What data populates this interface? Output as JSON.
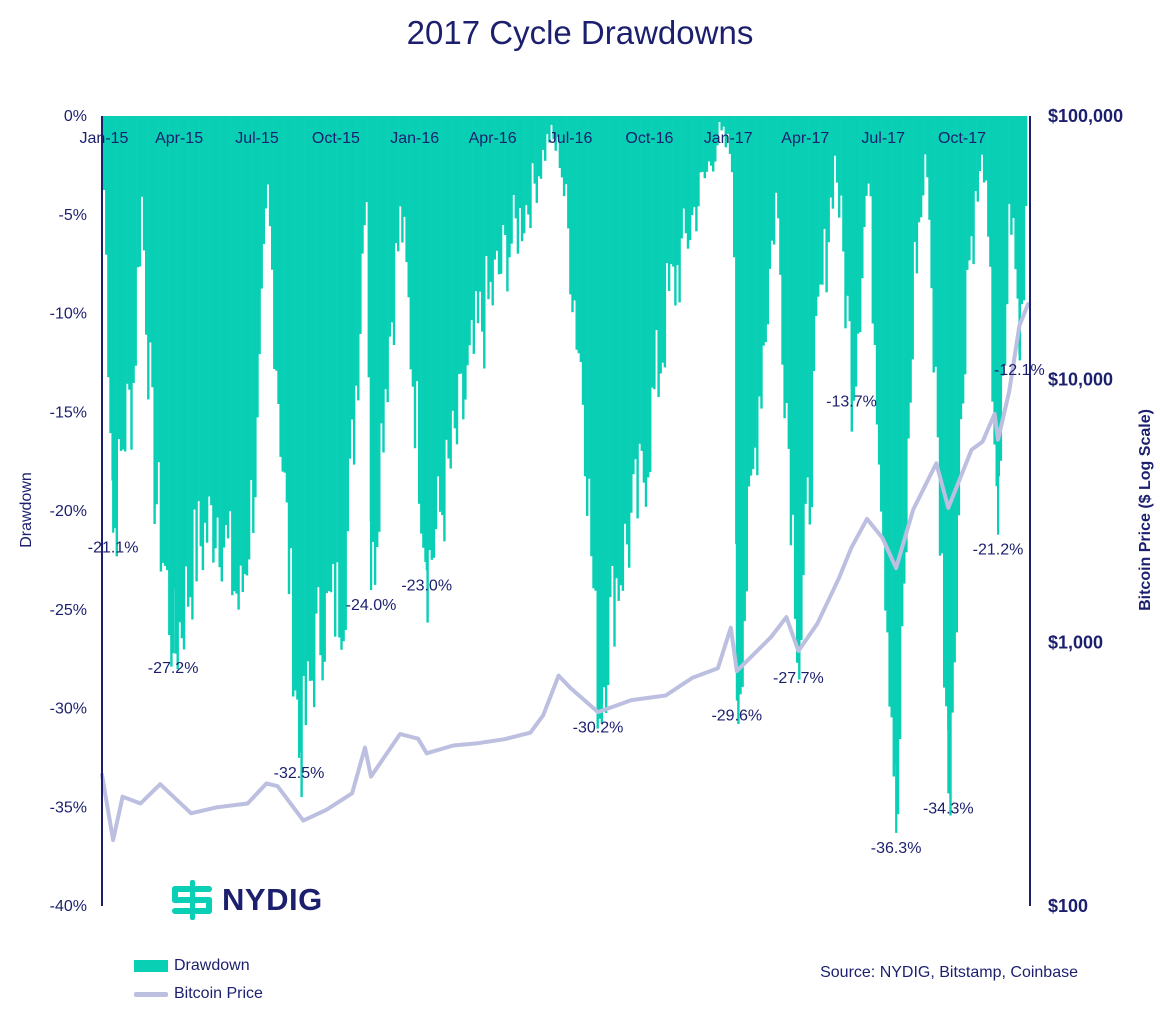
{
  "chart_data": {
    "type": "bar",
    "title": "2017 Cycle Drawdowns",
    "ylabel": "Drawdown",
    "y2label": "Bitcoin Price ($ Log Scale)",
    "ylim": [
      -40,
      0
    ],
    "y2lim": [
      100,
      100000
    ],
    "y2scale": "log",
    "ytick_labels": [
      "0%",
      "-5%",
      "-10%",
      "-15%",
      "-20%",
      "-25%",
      "-30%",
      "-35%",
      "-40%"
    ],
    "y2tick_labels": [
      "$100,000",
      "$10,000",
      "$1,000",
      "$100"
    ],
    "xtick_labels": [
      "Jan-15",
      "Apr-15",
      "Jul-15",
      "Oct-15",
      "Jan-16",
      "Apr-16",
      "Jul-16",
      "Oct-16",
      "Jan-17",
      "Apr-17",
      "Jul-17",
      "Oct-17"
    ],
    "legend": [
      "Drawdown",
      "Bitcoin Price"
    ],
    "legend_position": "bottom-left",
    "grid": false,
    "colors": {
      "drawdown": "#09cfb5",
      "price": "#bcbfe0",
      "text": "#1b1f6e"
    },
    "drawdown_troughs": [
      {
        "date": "2015-01-14",
        "value": -21.1,
        "label": "-21.1%"
      },
      {
        "date": "2015-03-25",
        "value": -27.2,
        "label": "-27.2%"
      },
      {
        "date": "2015-08-19",
        "value": -32.5,
        "label": "-32.5%"
      },
      {
        "date": "2015-11-11",
        "value": -24.0,
        "label": "-24.0%"
      },
      {
        "date": "2016-01-15",
        "value": -23.0,
        "label": "-23.0%"
      },
      {
        "date": "2016-08-02",
        "value": -30.2,
        "label": "-30.2%"
      },
      {
        "date": "2017-01-11",
        "value": -29.6,
        "label": "-29.6%"
      },
      {
        "date": "2017-03-24",
        "value": -27.7,
        "label": "-27.7%"
      },
      {
        "date": "2017-05-25",
        "value": -13.7,
        "label": "-13.7%"
      },
      {
        "date": "2017-07-16",
        "value": -36.3,
        "label": "-36.3%"
      },
      {
        "date": "2017-09-15",
        "value": -34.3,
        "label": "-34.3%"
      },
      {
        "date": "2017-11-12",
        "value": -21.2,
        "label": "-21.2%"
      },
      {
        "date": "2017-12-07",
        "value": -12.1,
        "label": "-12.1%"
      }
    ],
    "drawdown_series": {
      "name": "Drawdown",
      "points": [
        {
          "date": "2015-01-01",
          "value": -2
        },
        {
          "date": "2015-01-14",
          "value": -21.1
        },
        {
          "date": "2015-01-25",
          "value": -16
        },
        {
          "date": "2015-02-05",
          "value": -14
        },
        {
          "date": "2015-02-15",
          "value": -4
        },
        {
          "date": "2015-03-01",
          "value": -18
        },
        {
          "date": "2015-03-25",
          "value": -27.2
        },
        {
          "date": "2015-04-20",
          "value": -22
        },
        {
          "date": "2015-05-15",
          "value": -20
        },
        {
          "date": "2015-06-10",
          "value": -25
        },
        {
          "date": "2015-06-30",
          "value": -17
        },
        {
          "date": "2015-07-12",
          "value": -4
        },
        {
          "date": "2015-07-25",
          "value": -14
        },
        {
          "date": "2015-08-19",
          "value": -32.5
        },
        {
          "date": "2015-09-10",
          "value": -26
        },
        {
          "date": "2015-10-10",
          "value": -24
        },
        {
          "date": "2015-10-28",
          "value": -10
        },
        {
          "date": "2015-11-04",
          "value": -2
        },
        {
          "date": "2015-11-11",
          "value": -24.0
        },
        {
          "date": "2015-11-25",
          "value": -14
        },
        {
          "date": "2015-12-15",
          "value": -5
        },
        {
          "date": "2016-01-15",
          "value": -23.0
        },
        {
          "date": "2016-02-15",
          "value": -17
        },
        {
          "date": "2016-03-15",
          "value": -11
        },
        {
          "date": "2016-04-15",
          "value": -7
        },
        {
          "date": "2016-05-15",
          "value": -4
        },
        {
          "date": "2016-06-05",
          "value": -1
        },
        {
          "date": "2016-06-18",
          "value": -2
        },
        {
          "date": "2016-07-15",
          "value": -14
        },
        {
          "date": "2016-08-02",
          "value": -30.2
        },
        {
          "date": "2016-08-20",
          "value": -24
        },
        {
          "date": "2016-09-20",
          "value": -19
        },
        {
          "date": "2016-10-20",
          "value": -10
        },
        {
          "date": "2016-11-20",
          "value": -5
        },
        {
          "date": "2016-12-20",
          "value": -1
        },
        {
          "date": "2017-01-05",
          "value": -2
        },
        {
          "date": "2017-01-11",
          "value": -29.6
        },
        {
          "date": "2017-02-05",
          "value": -14
        },
        {
          "date": "2017-02-25",
          "value": -4
        },
        {
          "date": "2017-03-24",
          "value": -27.7
        },
        {
          "date": "2017-04-15",
          "value": -11
        },
        {
          "date": "2017-05-05",
          "value": -2
        },
        {
          "date": "2017-05-25",
          "value": -13.7
        },
        {
          "date": "2017-06-12",
          "value": -3
        },
        {
          "date": "2017-07-16",
          "value": -36.3
        },
        {
          "date": "2017-08-05",
          "value": -8
        },
        {
          "date": "2017-08-20",
          "value": -2
        },
        {
          "date": "2017-09-15",
          "value": -34.3
        },
        {
          "date": "2017-10-05",
          "value": -8
        },
        {
          "date": "2017-10-25",
          "value": -2
        },
        {
          "date": "2017-11-12",
          "value": -21.2
        },
        {
          "date": "2017-11-25",
          "value": -4
        },
        {
          "date": "2017-12-07",
          "value": -12.1
        },
        {
          "date": "2017-12-17",
          "value": 0
        }
      ]
    },
    "price_series": {
      "name": "Bitcoin Price",
      "points": [
        {
          "date": "2015-01-01",
          "value": 315
        },
        {
          "date": "2015-01-14",
          "value": 178
        },
        {
          "date": "2015-01-25",
          "value": 260
        },
        {
          "date": "2015-02-15",
          "value": 245
        },
        {
          "date": "2015-03-10",
          "value": 290
        },
        {
          "date": "2015-04-15",
          "value": 225
        },
        {
          "date": "2015-05-15",
          "value": 237
        },
        {
          "date": "2015-06-20",
          "value": 245
        },
        {
          "date": "2015-07-12",
          "value": 292
        },
        {
          "date": "2015-07-25",
          "value": 285
        },
        {
          "date": "2015-08-24",
          "value": 211
        },
        {
          "date": "2015-09-20",
          "value": 232
        },
        {
          "date": "2015-10-20",
          "value": 268
        },
        {
          "date": "2015-11-04",
          "value": 400
        },
        {
          "date": "2015-11-11",
          "value": 310
        },
        {
          "date": "2015-12-15",
          "value": 450
        },
        {
          "date": "2016-01-05",
          "value": 432
        },
        {
          "date": "2016-01-15",
          "value": 380
        },
        {
          "date": "2016-02-15",
          "value": 407
        },
        {
          "date": "2016-03-15",
          "value": 415
        },
        {
          "date": "2016-04-15",
          "value": 430
        },
        {
          "date": "2016-05-15",
          "value": 455
        },
        {
          "date": "2016-05-30",
          "value": 530
        },
        {
          "date": "2016-06-17",
          "value": 750
        },
        {
          "date": "2016-07-01",
          "value": 672
        },
        {
          "date": "2016-08-02",
          "value": 545
        },
        {
          "date": "2016-09-10",
          "value": 605
        },
        {
          "date": "2016-10-20",
          "value": 630
        },
        {
          "date": "2016-11-20",
          "value": 735
        },
        {
          "date": "2016-12-20",
          "value": 800
        },
        {
          "date": "2017-01-04",
          "value": 1140
        },
        {
          "date": "2017-01-11",
          "value": 780
        },
        {
          "date": "2017-02-20",
          "value": 1050
        },
        {
          "date": "2017-03-10",
          "value": 1250
        },
        {
          "date": "2017-03-24",
          "value": 930
        },
        {
          "date": "2017-04-15",
          "value": 1180
        },
        {
          "date": "2017-05-10",
          "value": 1750
        },
        {
          "date": "2017-05-25",
          "value": 2300
        },
        {
          "date": "2017-06-12",
          "value": 2950
        },
        {
          "date": "2017-06-30",
          "value": 2500
        },
        {
          "date": "2017-07-16",
          "value": 1920
        },
        {
          "date": "2017-08-05",
          "value": 3200
        },
        {
          "date": "2017-09-01",
          "value": 4800
        },
        {
          "date": "2017-09-15",
          "value": 3250
        },
        {
          "date": "2017-10-12",
          "value": 5400
        },
        {
          "date": "2017-10-25",
          "value": 5800
        },
        {
          "date": "2017-11-08",
          "value": 7400
        },
        {
          "date": "2017-11-12",
          "value": 5900
        },
        {
          "date": "2017-11-25",
          "value": 9000
        },
        {
          "date": "2017-12-07",
          "value": 16000
        },
        {
          "date": "2017-12-17",
          "value": 19300
        }
      ]
    }
  },
  "brand": {
    "logo_text": "NYDIG",
    "logo_color": "#09cfb5"
  },
  "source": "Source: NYDIG, Bitstamp, Coinbase"
}
